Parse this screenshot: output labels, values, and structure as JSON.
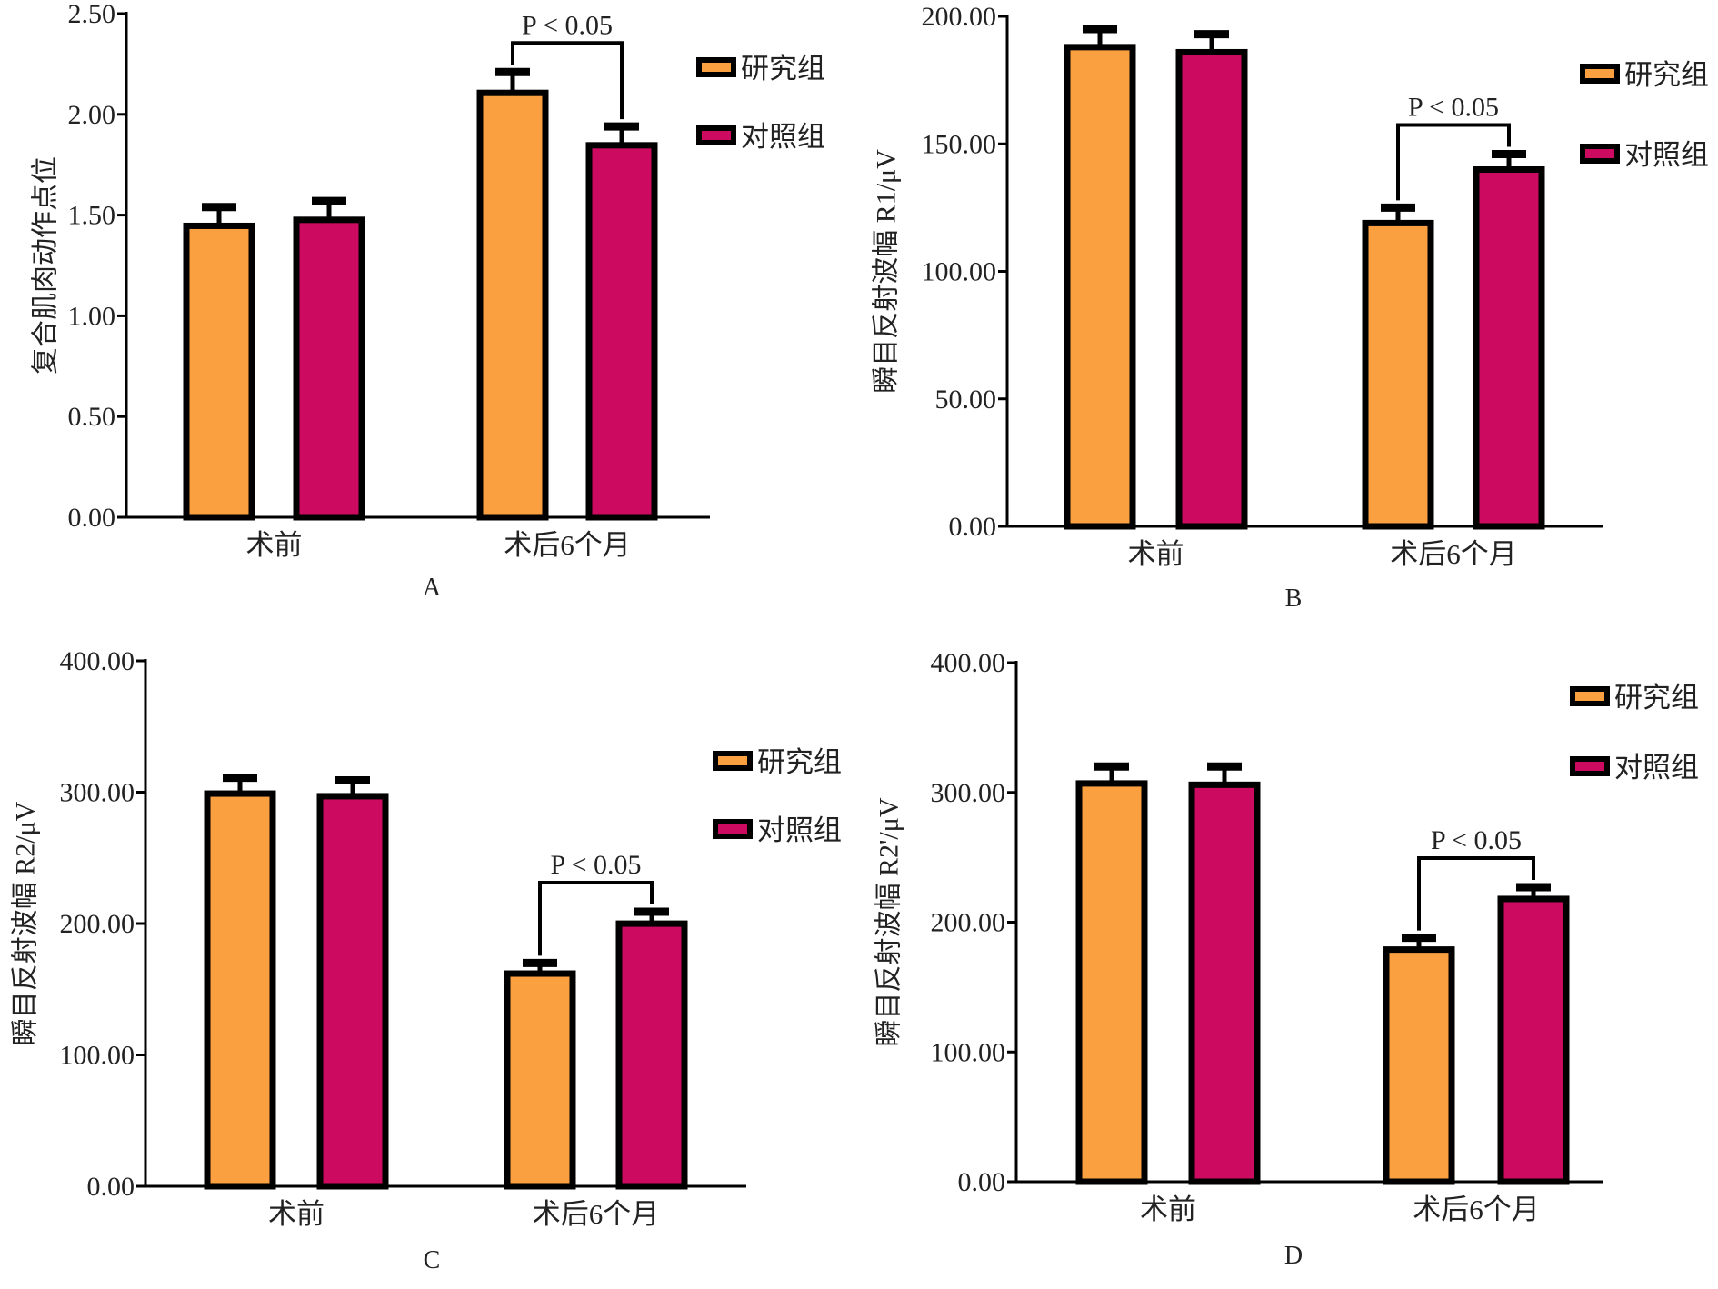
{
  "colors": {
    "study": "#FBA040",
    "control": "#CC0A60",
    "outline": "#000000"
  },
  "legend": [
    "研究组",
    "对照组"
  ],
  "chart_data": [
    {
      "type": "bar",
      "caption": "A",
      "ylabel": "复合肌肉动作点位",
      "categories": [
        "术前",
        "术后6个月"
      ],
      "ylim": [
        0,
        2.5
      ],
      "yticks": [
        "0.00",
        "0.50",
        "1.00",
        "1.50",
        "2.00",
        "2.50"
      ],
      "series": [
        {
          "name": "研究组",
          "values": [
            1.46,
            2.12
          ],
          "errors": [
            0.08,
            0.09
          ]
        },
        {
          "name": "对照组",
          "values": [
            1.49,
            1.86
          ],
          "errors": [
            0.08,
            0.08
          ]
        }
      ],
      "annotation": "P < 0.05",
      "legend_position": "top-right",
      "grid": false
    },
    {
      "type": "bar",
      "caption": "B",
      "ylabel": "瞬目反射波幅 R1/μV",
      "categories": [
        "术前",
        "术后6个月"
      ],
      "ylim": [
        0,
        200
      ],
      "yticks": [
        "0.00",
        "50.00",
        "100.00",
        "150.00",
        "200.00"
      ],
      "series": [
        {
          "name": "研究组",
          "values": [
            189,
            120
          ],
          "errors": [
            6,
            5
          ]
        },
        {
          "name": "对照组",
          "values": [
            187,
            141
          ],
          "errors": [
            6,
            5
          ]
        }
      ],
      "annotation": "P < 0.05",
      "legend_position": "top-right",
      "grid": false
    },
    {
      "type": "bar",
      "caption": "C",
      "ylabel": "瞬目反射波幅 R2/μV",
      "categories": [
        "术前",
        "术后6个月"
      ],
      "ylim": [
        0,
        400
      ],
      "yticks": [
        "0.00",
        "100.00",
        "200.00",
        "300.00",
        "400.00"
      ],
      "series": [
        {
          "name": "研究组",
          "values": [
            301,
            164
          ],
          "errors": [
            10,
            6
          ]
        },
        {
          "name": "对照组",
          "values": [
            299,
            202
          ],
          "errors": [
            10,
            7
          ]
        }
      ],
      "annotation": "P < 0.05",
      "legend_position": "right",
      "grid": false
    },
    {
      "type": "bar",
      "caption": "D",
      "ylabel": "瞬目反射波幅 R2'/μV",
      "categories": [
        "术前",
        "术后6个月"
      ],
      "ylim": [
        0,
        400
      ],
      "yticks": [
        "0.00",
        "100.00",
        "200.00",
        "300.00",
        "400.00"
      ],
      "series": [
        {
          "name": "研究组",
          "values": [
            309,
            181
          ],
          "errors": [
            11,
            7
          ]
        },
        {
          "name": "对照组",
          "values": [
            308,
            220
          ],
          "errors": [
            12,
            7
          ]
        }
      ],
      "annotation": "P < 0.05",
      "legend_position": "top-right",
      "grid": false
    }
  ]
}
